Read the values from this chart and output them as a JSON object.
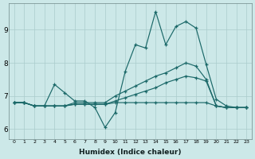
{
  "xlabel": "Humidex (Indice chaleur)",
  "ylabel": "",
  "bg_color": "#cce8e8",
  "grid_color": "#aacccc",
  "line_color": "#1a6868",
  "xlim": [
    -0.5,
    23.5
  ],
  "ylim": [
    5.7,
    9.8
  ],
  "yticks": [
    6,
    7,
    8,
    9
  ],
  "xticks": [
    0,
    1,
    2,
    3,
    4,
    5,
    6,
    7,
    8,
    9,
    10,
    11,
    12,
    13,
    14,
    15,
    16,
    17,
    18,
    19,
    20,
    21,
    22,
    23
  ],
  "line1_y": [
    6.8,
    6.8,
    6.7,
    6.7,
    7.35,
    7.1,
    6.85,
    6.85,
    6.65,
    6.05,
    6.5,
    7.75,
    8.55,
    8.45,
    9.55,
    8.55,
    9.1,
    9.25,
    9.05,
    7.95,
    6.9,
    6.7,
    6.65,
    6.65
  ],
  "line2_y": [
    6.8,
    6.8,
    6.7,
    6.7,
    6.7,
    6.7,
    6.8,
    6.8,
    6.8,
    6.8,
    7.0,
    7.15,
    7.3,
    7.45,
    7.6,
    7.7,
    7.85,
    8.0,
    7.9,
    7.5,
    6.7,
    6.65,
    6.65,
    6.65
  ],
  "line3_y": [
    6.8,
    6.8,
    6.7,
    6.7,
    6.7,
    6.7,
    6.75,
    6.75,
    6.75,
    6.75,
    6.85,
    6.95,
    7.05,
    7.15,
    7.25,
    7.4,
    7.5,
    7.6,
    7.55,
    7.45,
    6.7,
    6.65,
    6.65,
    6.65
  ],
  "line4_y": [
    6.8,
    6.8,
    6.7,
    6.7,
    6.7,
    6.7,
    6.75,
    6.75,
    6.75,
    6.75,
    6.8,
    6.8,
    6.8,
    6.8,
    6.8,
    6.8,
    6.8,
    6.8,
    6.8,
    6.8,
    6.7,
    6.65,
    6.65,
    6.65
  ]
}
